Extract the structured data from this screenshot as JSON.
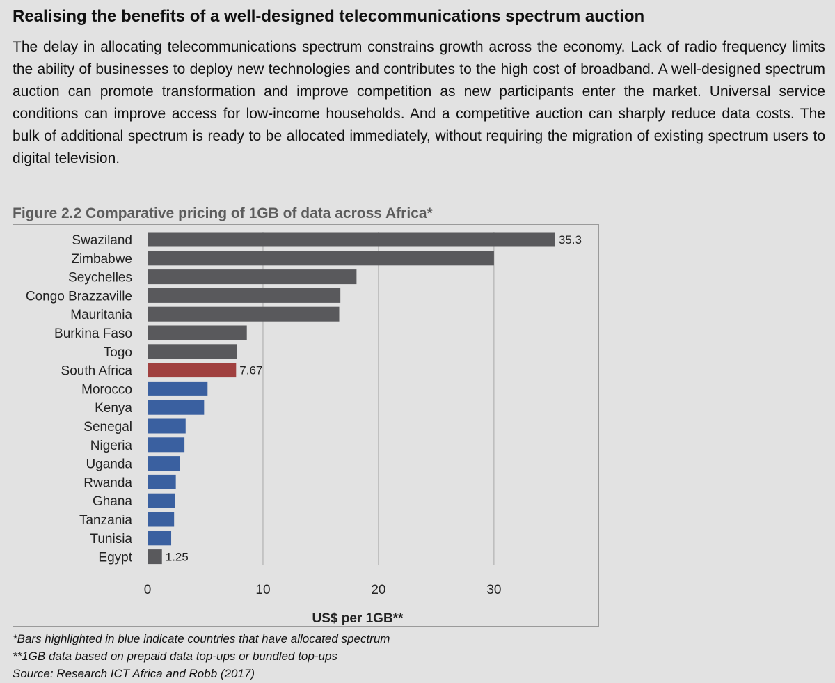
{
  "heading": "Realising the benefits of a well-designed telecommunications spectrum auction",
  "paragraph": "The delay in allocating telecommunications spectrum constrains growth across the economy. Lack of radio frequency limits the ability of businesses to deploy new technologies and contributes to the high cost of broadband. A well-designed spectrum auction can promote transformation and improve competition as new participants enter the market. Universal service conditions can improve access for low-income households. And a competitive auction can sharply reduce data costs. The bulk of additional spectrum is ready to be allocated immediately, without requiring the migration of existing spectrum users to digital television.",
  "figure_title": "Figure 2.2 Comparative pricing of 1GB of data across Africa*",
  "notes": [
    "*Bars highlighted in blue indicate countries that have allocated spectrum",
    "**1GB data based on prepaid data top-ups or bundled top-ups",
    "Source: Research ICT Africa and Robb (2017)"
  ],
  "colors": {
    "default_bar": "#59595c",
    "highlight_bar": "#a0403f",
    "allocated_bar": "#3a60a0",
    "gridline": "#a8a8a8"
  },
  "chart_data": {
    "type": "bar",
    "orientation": "horizontal",
    "categories": [
      "Swaziland",
      "Zimbabwe",
      "Seychelles",
      "Congo Brazzaville",
      "Mauritania",
      "Burkina Faso",
      "Togo",
      "South Africa",
      "Morocco",
      "Kenya",
      "Senegal",
      "Nigeria",
      "Uganda",
      "Rwanda",
      "Ghana",
      "Tanzania",
      "Tunisia",
      "Egypt"
    ],
    "values": [
      35.3,
      30.0,
      18.1,
      16.7,
      16.6,
      8.6,
      7.75,
      7.67,
      5.2,
      4.9,
      3.3,
      3.2,
      2.8,
      2.45,
      2.35,
      2.3,
      2.05,
      1.25
    ],
    "bar_groups": [
      "default",
      "default",
      "default",
      "default",
      "default",
      "default",
      "default",
      "highlight",
      "allocated",
      "allocated",
      "allocated",
      "allocated",
      "allocated",
      "allocated",
      "allocated",
      "allocated",
      "allocated",
      "default"
    ],
    "data_labels": [
      {
        "category": "Swaziland",
        "text": "35.3"
      },
      {
        "category": "South Africa",
        "text": "7.67"
      },
      {
        "category": "Egypt",
        "text": "1.25"
      }
    ],
    "x_ticks": [
      0,
      10,
      20,
      30
    ],
    "xlim": [
      0,
      37.9
    ],
    "xlabel": "US$  per 1GB**",
    "ylabel": "",
    "title": "",
    "grid": true,
    "legend": "none"
  }
}
